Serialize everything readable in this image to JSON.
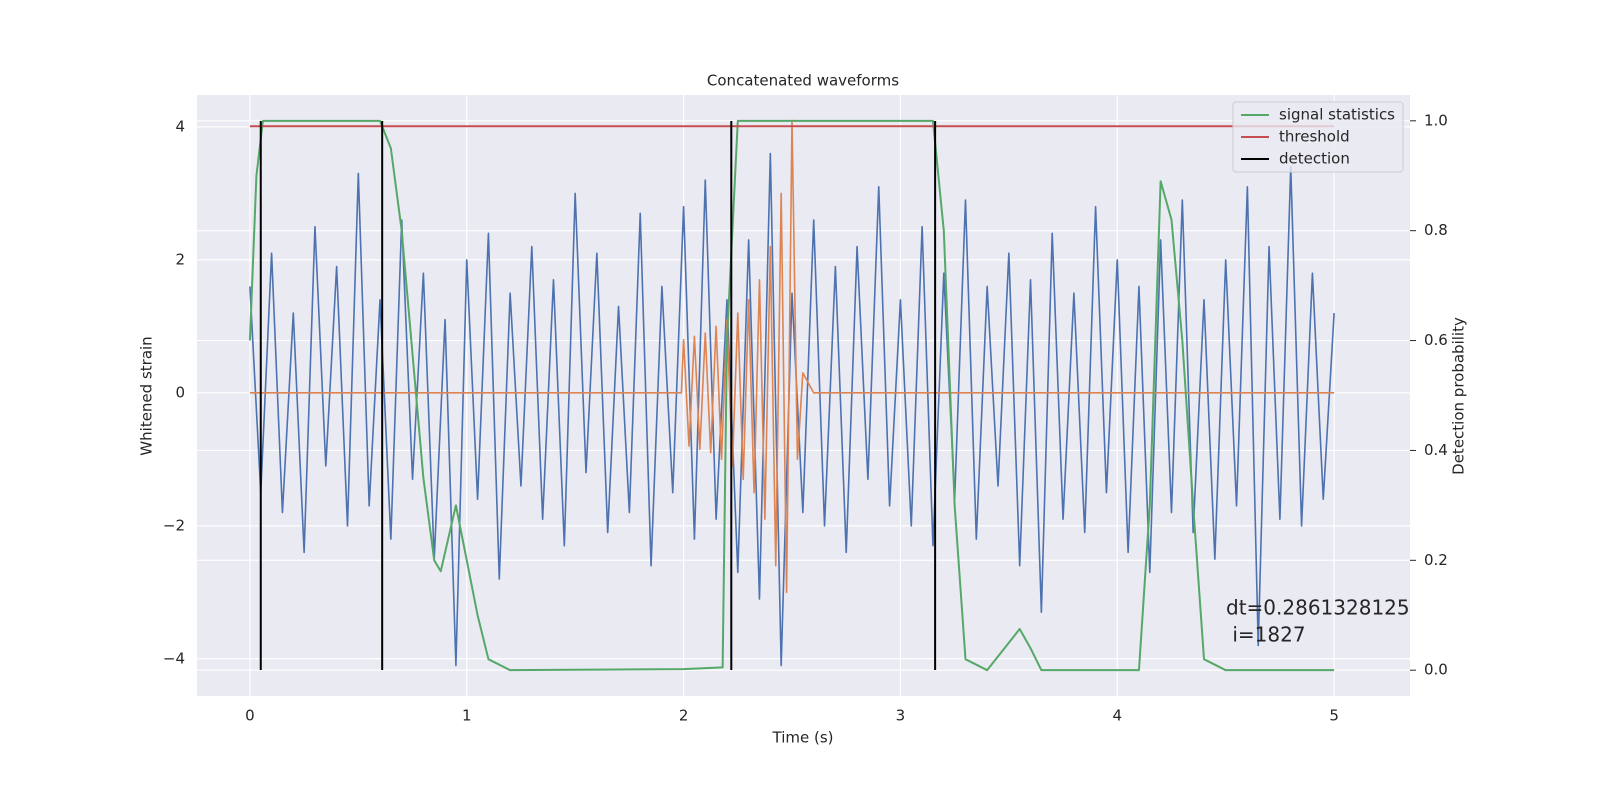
{
  "chart_data": {
    "type": "line",
    "title": "Concatenated waveforms",
    "xlabel": "Time (s)",
    "ylabel": "Whitened strain",
    "y2label": "Detection probability",
    "xlim": [
      -0.244,
      5.35
    ],
    "ylim": [
      -4.56,
      4.48
    ],
    "y2lim": [
      -0.047,
      1.047
    ],
    "xticks": [
      0,
      1,
      2,
      3,
      4,
      5
    ],
    "yticks": [
      {
        "value": -4,
        "label": "−4"
      },
      {
        "value": -2,
        "label": "−2"
      },
      0,
      2,
      4
    ],
    "y2ticks": [
      {
        "value": 0,
        "label": "0.0"
      },
      {
        "value": 0.2,
        "label": "0.2"
      },
      {
        "value": 0.4,
        "label": "0.4"
      },
      {
        "value": 0.6,
        "label": "0.6"
      },
      {
        "value": 0.8,
        "label": "0.8"
      },
      {
        "value": 1,
        "label": "1.0"
      }
    ],
    "grid": true,
    "legend": "upper right",
    "annotation": [
      "dt=0.2861328125",
      " i=1827"
    ],
    "series": [
      {
        "color": "#4c72b0",
        "x": [
          0,
          0.05,
          0.1,
          0.15,
          0.2,
          0.25,
          0.3,
          0.35,
          0.4,
          0.45,
          0.5,
          0.55,
          0.6,
          0.65,
          0.7,
          0.75,
          0.8,
          0.85,
          0.9,
          0.95,
          1,
          1.05,
          1.1,
          1.15,
          1.2,
          1.25,
          1.3,
          1.35,
          1.4,
          1.45,
          1.5,
          1.55,
          1.6,
          1.65,
          1.7,
          1.75,
          1.8,
          1.85,
          1.9,
          1.95,
          2,
          2.05,
          2.1,
          2.15,
          2.2,
          2.25,
          2.3,
          2.35,
          2.4,
          2.45,
          2.5,
          2.55,
          2.6,
          2.65,
          2.7,
          2.75,
          2.8,
          2.85,
          2.9,
          2.95,
          3,
          3.05,
          3.1,
          3.15,
          3.2,
          3.25,
          3.3,
          3.35,
          3.4,
          3.45,
          3.5,
          3.55,
          3.6,
          3.65,
          3.7,
          3.75,
          3.8,
          3.85,
          3.9,
          3.95,
          4,
          4.05,
          4.1,
          4.15,
          4.2,
          4.25,
          4.3,
          4.35,
          4.4,
          4.45,
          4.5,
          4.55,
          4.6,
          4.65,
          4.7,
          4.75,
          4.8,
          4.85,
          4.9,
          4.95,
          5
        ],
        "values": [
          1.6,
          -1.5,
          2.1,
          -1.8,
          1.2,
          -2.4,
          2.5,
          -1.1,
          1.9,
          -2.0,
          3.3,
          -1.7,
          1.4,
          -2.2,
          2.6,
          -1.3,
          1.8,
          -2.5,
          1.1,
          -4.1,
          2.0,
          -1.6,
          2.4,
          -2.8,
          1.5,
          -1.4,
          2.2,
          -1.9,
          1.7,
          -2.3,
          3.0,
          -1.2,
          2.1,
          -2.1,
          1.3,
          -1.8,
          2.7,
          -2.6,
          1.6,
          -1.5,
          2.8,
          -2.2,
          3.2,
          -1.9,
          1.4,
          -2.7,
          2.3,
          -3.1,
          3.6,
          -4.1,
          1.5,
          -1.8,
          2.6,
          -2.0,
          1.9,
          -2.4,
          2.2,
          -1.3,
          3.1,
          -1.7,
          1.4,
          -2.0,
          2.5,
          -2.3,
          1.8,
          -1.6,
          2.9,
          -2.2,
          1.6,
          -1.4,
          2.1,
          -2.6,
          1.7,
          -3.3,
          2.4,
          -1.9,
          1.5,
          -2.1,
          2.8,
          -1.5,
          2.0,
          -2.4,
          1.6,
          -2.7,
          2.3,
          -1.8,
          2.9,
          -2.1,
          1.4,
          -2.5,
          2.0,
          -1.7,
          3.1,
          -3.8,
          2.2,
          -1.9,
          3.4,
          -2.0,
          1.8,
          -1.6,
          1.2
        ]
      },
      {
        "color": "#dd8452",
        "x": [
          0,
          1.99,
          2.0,
          2.025,
          2.05,
          2.075,
          2.1,
          2.125,
          2.15,
          2.175,
          2.2,
          2.225,
          2.25,
          2.275,
          2.3,
          2.325,
          2.35,
          2.375,
          2.4,
          2.425,
          2.45,
          2.475,
          2.5,
          2.525,
          2.55,
          2.6,
          5.0
        ],
        "values": [
          0,
          0,
          0.8,
          -0.8,
          0.85,
          -0.85,
          0.9,
          -0.9,
          1.0,
          -1.0,
          1.1,
          -1.1,
          1.2,
          -1.3,
          1.4,
          -1.5,
          1.7,
          -1.9,
          2.2,
          -2.6,
          3.0,
          -3.0,
          4.1,
          -1.0,
          0.3,
          0,
          0
        ]
      },
      {
        "name": "signal statistics",
        "color": "#55a868",
        "axis": "y2",
        "x": [
          0,
          0.03,
          0.06,
          0.1,
          0.6,
          0.65,
          0.7,
          0.8,
          0.85,
          0.88,
          0.95,
          1.0,
          1.05,
          1.1,
          1.2,
          2.0,
          2.18,
          2.2,
          2.25,
          3.15,
          3.2,
          3.25,
          3.3,
          3.4,
          3.5,
          3.55,
          3.6,
          3.65,
          4.1,
          4.15,
          4.2,
          4.25,
          4.3,
          4.35,
          4.4,
          4.5,
          5.0
        ],
        "values": [
          0.6,
          0.9,
          1.0,
          1.0,
          1.0,
          0.95,
          0.8,
          0.35,
          0.2,
          0.18,
          0.3,
          0.2,
          0.1,
          0.02,
          0.0,
          0.002,
          0.005,
          0.6,
          1.0,
          1.0,
          0.8,
          0.3,
          0.02,
          0.0,
          0.05,
          0.075,
          0.04,
          0.0,
          0.0,
          0.3,
          0.89,
          0.82,
          0.6,
          0.3,
          0.02,
          0.0,
          0.0
        ]
      },
      {
        "name": "threshold",
        "color": "#c44e52",
        "axis": "y2",
        "x": [
          0,
          5
        ],
        "values": [
          0.99,
          0.99
        ]
      },
      {
        "name": "detection",
        "color": "#000000",
        "kind": "vline",
        "x": [
          0.05,
          0.61,
          2.22,
          3.16
        ]
      }
    ]
  }
}
